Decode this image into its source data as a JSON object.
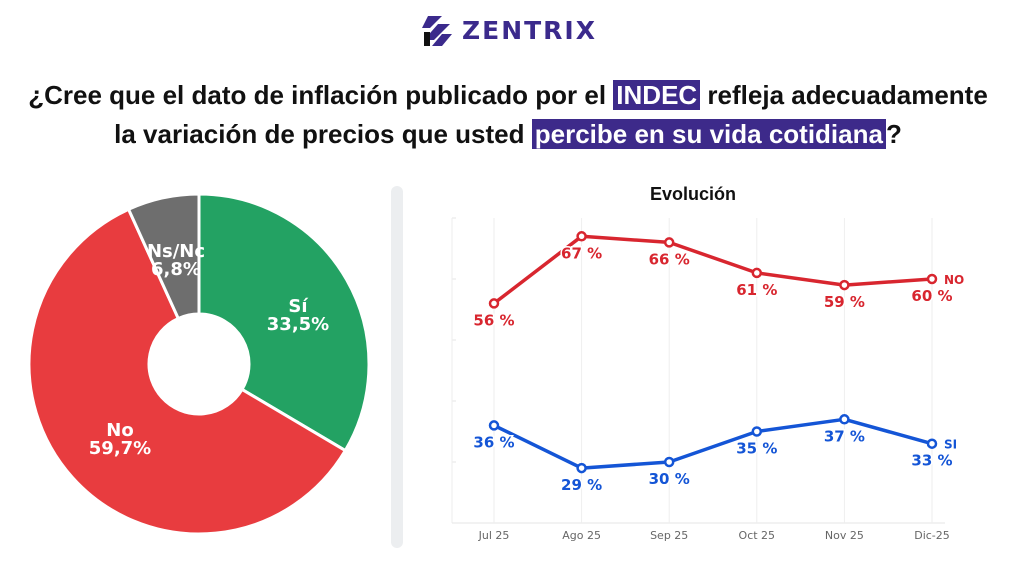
{
  "brand": {
    "name": "ZENTRIX",
    "color": "#3b2a8c"
  },
  "question": {
    "line1_before": "¿Cree que el dato de inflación publicado por el ",
    "line1_highlight": "INDEC",
    "line1_after": " refleja adecuadamente",
    "line2_before": "la variación de precios que usted ",
    "line2_highlight": "percibe en su vida cotidiana",
    "line2_after": "?",
    "highlight_color": "#3d2a8a"
  },
  "chart_data": [
    {
      "type": "pie",
      "donut": true,
      "slices": [
        {
          "label": "Sí",
          "value": 33.5,
          "display": "33,5%",
          "color": "#23a263"
        },
        {
          "label": "No",
          "value": 59.7,
          "display": "59,7%",
          "color": "#e83c3f"
        },
        {
          "label": "Ns/Nc",
          "value": 6.8,
          "display": "6,8%",
          "color": "#6e6e6e"
        }
      ]
    },
    {
      "type": "line",
      "title": "Evolución",
      "categories": [
        "Jul 25",
        "Ago 25",
        "Sep 25",
        "Oct 25",
        "Nov 25",
        "Dic-25"
      ],
      "ylim": [
        20,
        70
      ],
      "grid": true,
      "series": [
        {
          "name": "NO",
          "values": [
            56,
            67,
            66,
            61,
            59,
            60
          ],
          "labels": [
            "56 %",
            "67 %",
            "66 %",
            "61 %",
            "59 %",
            "60 %"
          ],
          "color": "#d8262f"
        },
        {
          "name": "SI",
          "values": [
            36,
            29,
            30,
            35,
            37,
            33
          ],
          "labels": [
            "36 %",
            "29 %",
            "30 %",
            "35 %",
            "37 %",
            "33 %"
          ],
          "color": "#1455d6"
        }
      ]
    }
  ]
}
